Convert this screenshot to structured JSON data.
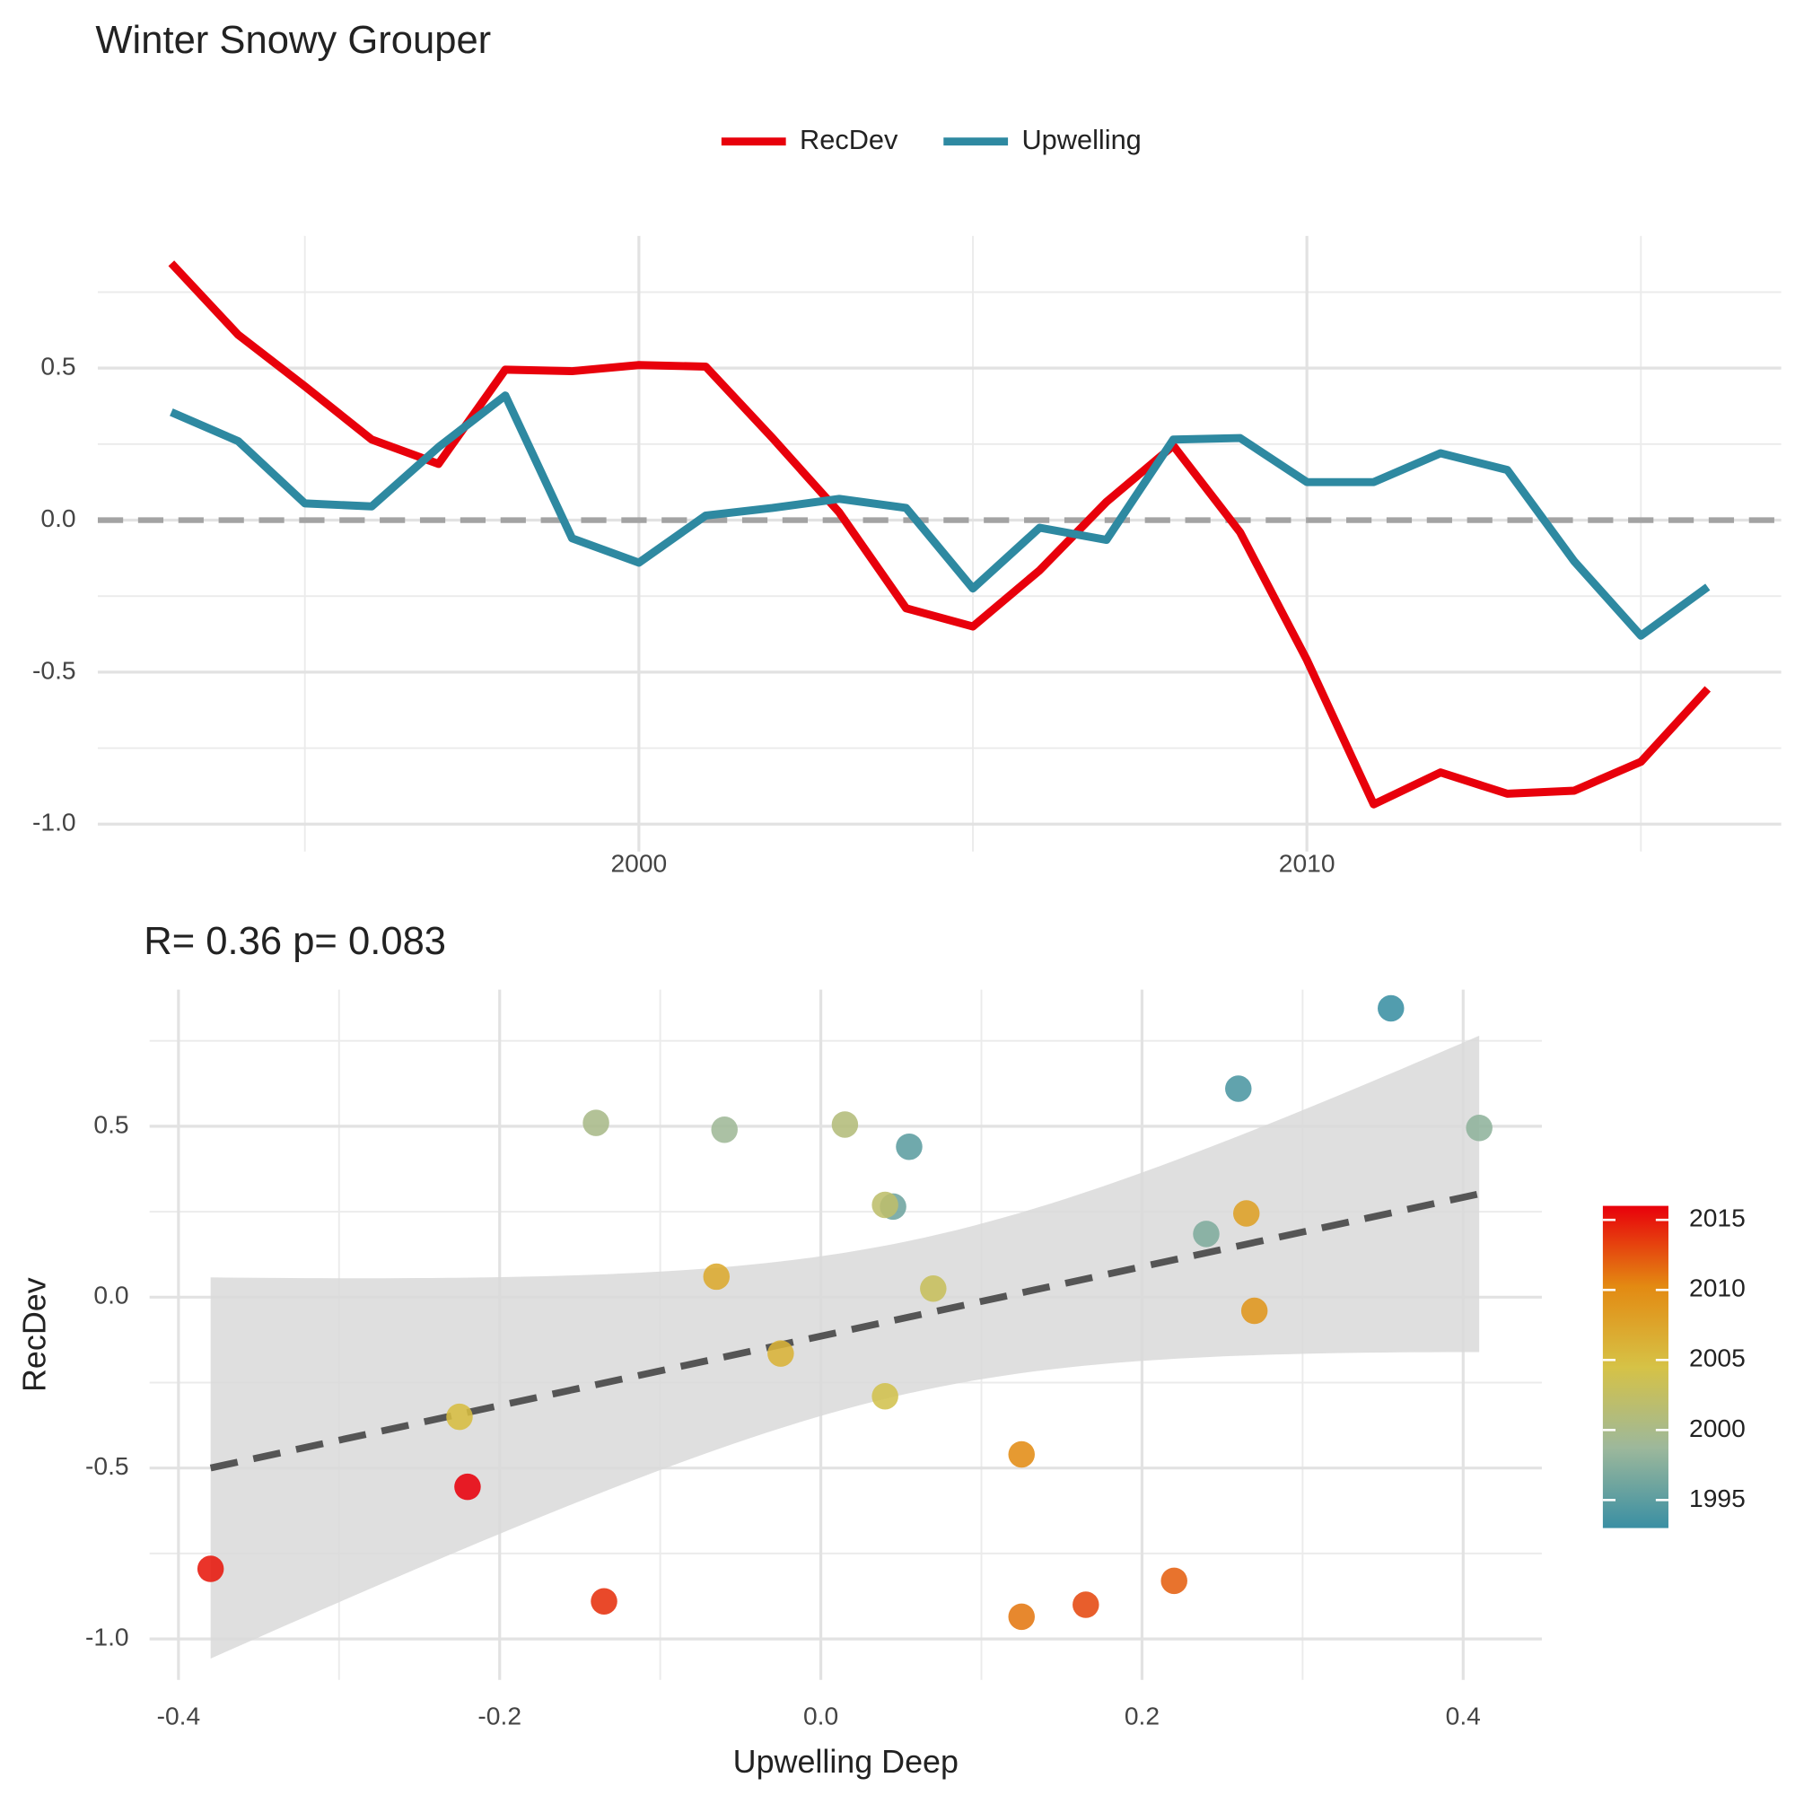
{
  "chart_data": [
    {
      "type": "line",
      "title": "Winter Snowy Grouper",
      "x": [
        1993,
        1994,
        1995,
        1996,
        1997,
        1998,
        1999,
        2000,
        2001,
        2002,
        2003,
        2004,
        2005,
        2006,
        2007,
        2008,
        2009,
        2010,
        2011,
        2012,
        2013,
        2014,
        2015,
        2016
      ],
      "series": [
        {
          "name": "RecDev",
          "color": "#e8000b",
          "values": [
            0.845,
            0.61,
            0.44,
            0.265,
            0.185,
            0.495,
            0.49,
            0.51,
            0.505,
            0.27,
            0.025,
            -0.29,
            -0.35,
            -0.165,
            0.06,
            0.245,
            -0.04,
            -0.46,
            -0.935,
            -0.83,
            -0.9,
            -0.89,
            -0.795,
            -0.555
          ]
        },
        {
          "name": "Upwelling",
          "color": "#2e89a1",
          "values": [
            0.355,
            0.26,
            0.055,
            0.045,
            0.24,
            0.41,
            -0.06,
            -0.14,
            0.015,
            0.04,
            0.07,
            0.04,
            -0.225,
            -0.025,
            -0.065,
            0.265,
            0.27,
            0.125,
            0.125,
            0.22,
            0.165,
            -0.135,
            -0.38,
            -0.22
          ]
        }
      ],
      "xlim": [
        1991.9,
        2017.1
      ],
      "ylim": [
        -1.09,
        0.935
      ],
      "xticks": [
        2000,
        2010
      ],
      "yticks": [
        {
          "value": -1,
          "label": "-1.0"
        },
        {
          "value": -0.5,
          "label": "-0.5"
        },
        {
          "value": 0,
          "label": "0.0"
        },
        {
          "value": 0.5,
          "label": "0.5"
        }
      ],
      "hline": 0,
      "grid": true,
      "legend": "top"
    },
    {
      "type": "scatter",
      "title": "R= 0.36  p= 0.083",
      "x_label": "Upwelling Deep",
      "y_label": "RecDev",
      "x": [
        0.355,
        0.26,
        0.055,
        0.045,
        0.24,
        0.41,
        -0.06,
        -0.14,
        0.015,
        0.04,
        0.07,
        0.04,
        -0.225,
        -0.025,
        -0.065,
        0.265,
        0.27,
        0.125,
        0.125,
        0.22,
        0.165,
        -0.135,
        -0.38,
        -0.22
      ],
      "y": [
        0.845,
        0.61,
        0.44,
        0.265,
        0.185,
        0.495,
        0.49,
        0.51,
        0.505,
        0.27,
        0.025,
        -0.29,
        -0.35,
        -0.165,
        0.06,
        0.245,
        -0.04,
        -0.46,
        -0.935,
        -0.83,
        -0.9,
        -0.89,
        -0.795,
        -0.555
      ],
      "color_values": [
        1993,
        1994,
        1995,
        1996,
        1997,
        1998,
        1999,
        2000,
        2001,
        2002,
        2003,
        2004,
        2005,
        2006,
        2007,
        2008,
        2009,
        2010,
        2011,
        2012,
        2013,
        2014,
        2015,
        2016
      ],
      "xlim": [
        -0.418,
        0.449
      ],
      "ylim": [
        -1.12,
        0.9
      ],
      "xticks": [
        {
          "value": -0.4,
          "label": "-0.4"
        },
        {
          "value": -0.2,
          "label": "-0.2"
        },
        {
          "value": 0,
          "label": "0.0"
        },
        {
          "value": 0.2,
          "label": "0.2"
        },
        {
          "value": 0.4,
          "label": "0.4"
        }
      ],
      "yticks": [
        {
          "value": -1,
          "label": "-1.0"
        },
        {
          "value": -0.5,
          "label": "-0.5"
        },
        {
          "value": 0,
          "label": "0.0"
        },
        {
          "value": 0.5,
          "label": "0.5"
        }
      ],
      "colorbar": {
        "colors": [
          "#3a8fa3",
          "#9db89b",
          "#d6c246",
          "#e38a12",
          "#e8000b"
        ],
        "ticks": [
          1995,
          2000,
          2005,
          2010,
          2015
        ]
      },
      "fit": "lm",
      "grid": true
    }
  ]
}
